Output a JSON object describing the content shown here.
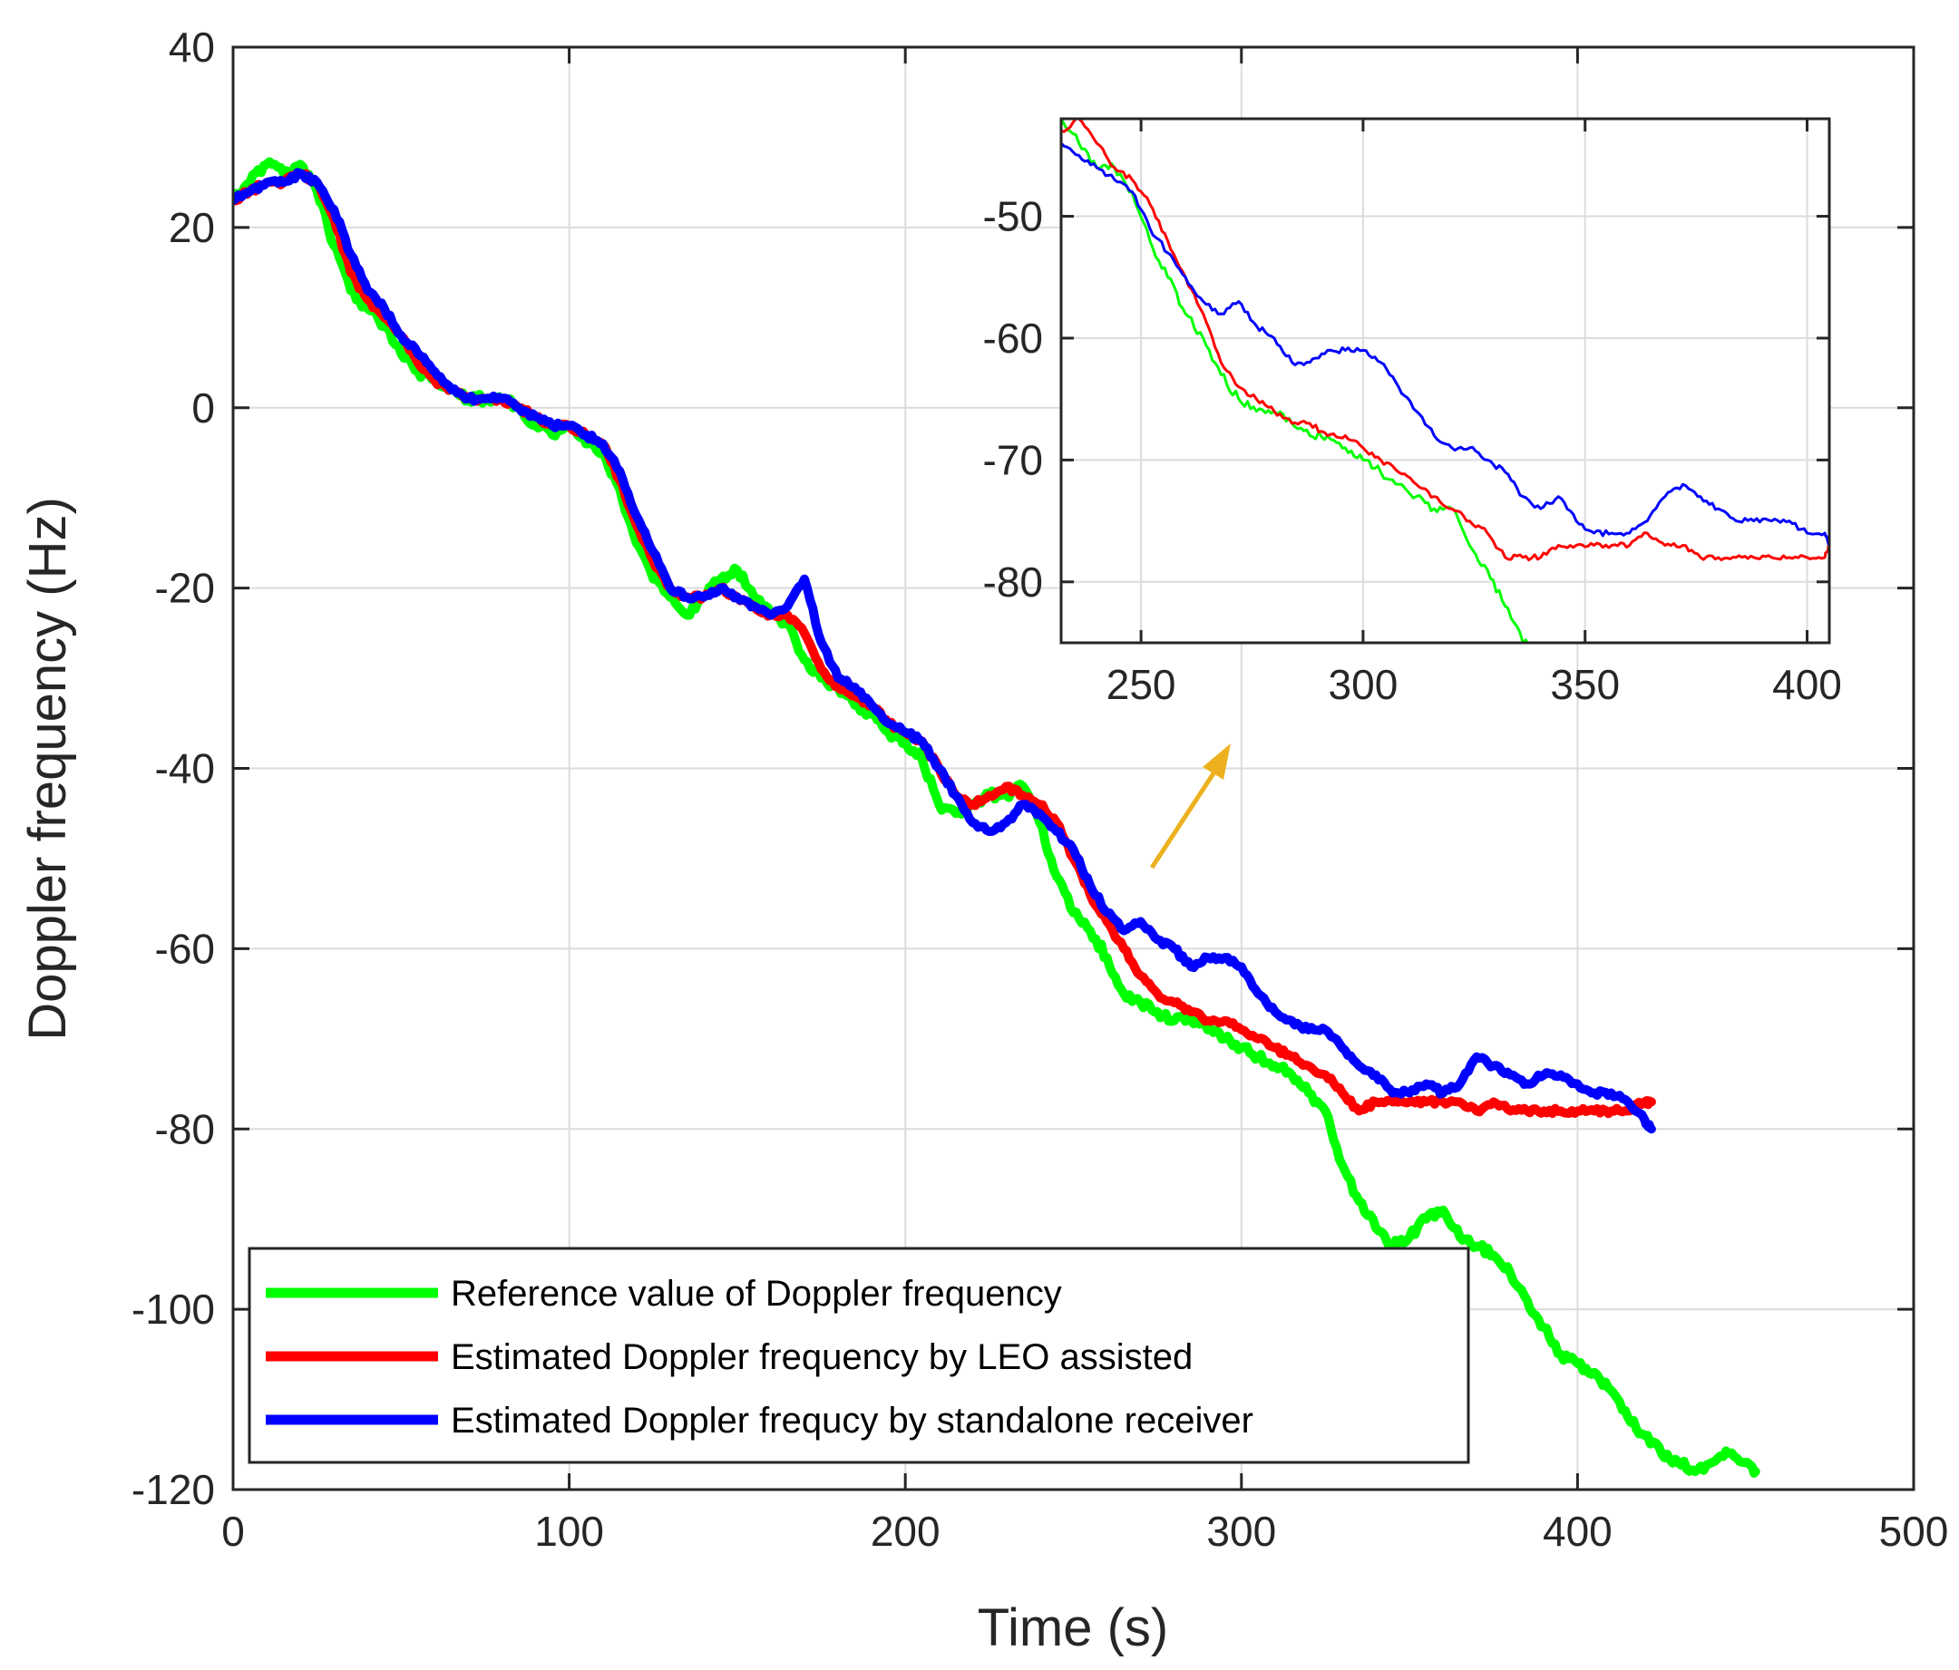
{
  "colors": {
    "reference": "#00ff00",
    "leo": "#ff0000",
    "standalone": "#0000ff",
    "arrow": "#edb120",
    "grid": "#dcdcdc",
    "axis": "#262626"
  },
  "chart_data": [
    {
      "id": "main",
      "type": "line",
      "xlabel": "Time (s)",
      "ylabel": "Doppler frequency (Hz)",
      "xlim": [
        0,
        500
      ],
      "ylim": [
        -120,
        40
      ],
      "xticks": [
        0,
        100,
        200,
        300,
        400,
        500
      ],
      "xtick_labels": [
        "0",
        "100",
        "200",
        "300",
        "400",
        "500"
      ],
      "yticks": [
        40,
        20,
        0,
        -20,
        -40,
        -60,
        -80,
        -100,
        -120
      ],
      "ytick_labels": [
        "40",
        "20",
        "0",
        "-20",
        "-40",
        "-60",
        "-80",
        "-100",
        "-120"
      ],
      "grid": true,
      "legend_position": "bottom-left",
      "series": [
        {
          "name": "Reference value of Doppler frequency",
          "color_key": "reference",
          "x": [
            0,
            5,
            10,
            15,
            20,
            25,
            30,
            35,
            40,
            45,
            50,
            55,
            60,
            65,
            70,
            75,
            80,
            85,
            90,
            95,
            100,
            105,
            110,
            115,
            120,
            125,
            130,
            135,
            140,
            145,
            150,
            155,
            160,
            165,
            170,
            175,
            180,
            185,
            190,
            195,
            200,
            205,
            210,
            215,
            220,
            225,
            230,
            235,
            240,
            245,
            250,
            255,
            260,
            265,
            270,
            275,
            280,
            285,
            290,
            295,
            300,
            305,
            310,
            315,
            320,
            325,
            330,
            335,
            340,
            345,
            350,
            355,
            360,
            365,
            370,
            375,
            380,
            385,
            390,
            395,
            400,
            405,
            410,
            415,
            420,
            425,
            430,
            435,
            440,
            445,
            450,
            453
          ],
          "y": [
            23,
            25,
            27,
            26,
            27,
            24,
            18,
            13,
            11,
            9,
            6,
            4,
            3,
            2,
            1,
            1,
            1,
            0,
            -2,
            -3,
            -2,
            -4,
            -5,
            -9,
            -15,
            -19,
            -21,
            -23,
            -21,
            -19,
            -18,
            -21,
            -23,
            -24,
            -28,
            -30,
            -31,
            -33,
            -34,
            -36,
            -37,
            -39,
            -44,
            -45,
            -44,
            -43,
            -43,
            -42,
            -46,
            -52,
            -56,
            -58,
            -61,
            -65,
            -66,
            -67,
            -68,
            -68,
            -69,
            -70,
            -71,
            -72,
            -73,
            -74,
            -76,
            -78,
            -84,
            -88,
            -91,
            -93,
            -92,
            -90,
            -89,
            -92,
            -93,
            -94,
            -96,
            -99,
            -102,
            -105,
            -106,
            -107,
            -109,
            -112,
            -114,
            -116,
            -117,
            -118,
            -117,
            -116,
            -117,
            -118
          ]
        },
        {
          "name": "Estimated Doppler frequency by LEO assisted",
          "color_key": "leo",
          "x": [
            0,
            5,
            10,
            15,
            20,
            25,
            30,
            35,
            40,
            45,
            50,
            55,
            60,
            65,
            70,
            75,
            80,
            85,
            90,
            95,
            100,
            105,
            110,
            115,
            120,
            125,
            130,
            135,
            140,
            145,
            150,
            155,
            160,
            165,
            170,
            175,
            180,
            185,
            190,
            195,
            200,
            205,
            210,
            215,
            220,
            225,
            230,
            235,
            240,
            245,
            250,
            255,
            260,
            265,
            270,
            275,
            280,
            285,
            290,
            295,
            300,
            305,
            310,
            315,
            320,
            325,
            330,
            335,
            340,
            345,
            350,
            355,
            360,
            365,
            370,
            375,
            380,
            385,
            390,
            395,
            400,
            405,
            410,
            415,
            420,
            422
          ],
          "y": [
            23,
            24,
            25,
            25,
            26,
            25,
            21,
            15,
            12,
            10,
            8,
            5,
            3,
            2,
            1,
            1,
            1,
            0,
            -1,
            -2,
            -2,
            -3,
            -4,
            -8,
            -13,
            -17,
            -20,
            -21,
            -21,
            -20,
            -21,
            -22,
            -23,
            -23,
            -25,
            -29,
            -31,
            -32,
            -33,
            -35,
            -36,
            -37,
            -40,
            -43,
            -44,
            -43,
            -42,
            -43,
            -44,
            -46,
            -50,
            -54,
            -57,
            -60,
            -63,
            -65,
            -66,
            -67,
            -68,
            -68,
            -69,
            -70,
            -71,
            -72,
            -73,
            -74,
            -76,
            -78,
            -77,
            -77,
            -77,
            -77,
            -77,
            -77,
            -78,
            -77,
            -78,
            -78,
            -78,
            -78,
            -78,
            -78,
            -78,
            -78,
            -77,
            -77
          ]
        },
        {
          "name": "Estimated Doppler frequcy by standalone receiver",
          "color_key": "standalone",
          "x": [
            0,
            5,
            10,
            15,
            20,
            25,
            30,
            35,
            40,
            45,
            50,
            55,
            60,
            65,
            70,
            75,
            80,
            85,
            90,
            95,
            100,
            105,
            110,
            115,
            120,
            125,
            130,
            135,
            140,
            145,
            150,
            155,
            160,
            165,
            170,
            175,
            180,
            185,
            190,
            195,
            200,
            205,
            210,
            215,
            220,
            225,
            230,
            235,
            240,
            245,
            250,
            255,
            260,
            265,
            270,
            275,
            280,
            285,
            290,
            295,
            300,
            305,
            310,
            315,
            320,
            325,
            330,
            335,
            340,
            345,
            350,
            355,
            360,
            365,
            370,
            375,
            380,
            385,
            390,
            395,
            400,
            405,
            410,
            415,
            420,
            422
          ],
          "y": [
            23,
            24,
            25,
            25,
            26,
            25,
            22,
            17,
            13,
            11,
            8,
            6,
            4,
            2,
            1,
            1,
            1,
            0,
            -1,
            -2,
            -2,
            -3,
            -4,
            -7,
            -12,
            -16,
            -20,
            -21,
            -21,
            -20,
            -21,
            -22,
            -23,
            -22,
            -19,
            -26,
            -30,
            -31,
            -33,
            -35,
            -36,
            -37,
            -40,
            -43,
            -46,
            -47,
            -46,
            -44,
            -45,
            -47,
            -49,
            -53,
            -56,
            -58,
            -57,
            -59,
            -60,
            -62,
            -61,
            -61,
            -62,
            -65,
            -67,
            -68,
            -69,
            -69,
            -71,
            -73,
            -74,
            -76,
            -76,
            -75,
            -76,
            -75,
            -72,
            -73,
            -74,
            -75,
            -74,
            -74,
            -75,
            -76,
            -76,
            -77,
            -79,
            -80
          ]
        }
      ]
    },
    {
      "id": "inset",
      "type": "line",
      "xlabel": "",
      "ylabel": "",
      "xlim": [
        232,
        405
      ],
      "ylim": [
        -85,
        -42
      ],
      "xticks": [
        250,
        300,
        350,
        400
      ],
      "xtick_labels": [
        "250",
        "300",
        "350",
        "400"
      ],
      "yticks": [
        -50,
        -60,
        -70,
        -80
      ],
      "ytick_labels": [
        "-50",
        "-60",
        "-70",
        "-80"
      ],
      "grid": true,
      "series": [
        {
          "name": "Reference value of Doppler frequency",
          "color_key": "reference",
          "x": [
            232,
            236,
            240,
            244,
            248,
            252,
            256,
            260,
            264,
            268,
            272,
            276,
            280,
            284,
            288,
            292,
            296,
            300,
            304,
            308,
            312,
            316,
            320,
            324,
            328,
            332,
            336,
            338
          ],
          "y": [
            -42,
            -44,
            -46,
            -46,
            -48,
            -52,
            -55,
            -58,
            -60,
            -63,
            -65,
            -66,
            -66,
            -67,
            -68,
            -68,
            -69,
            -70,
            -71,
            -72,
            -73,
            -74,
            -74,
            -77,
            -79,
            -82,
            -85,
            -85
          ]
        },
        {
          "name": "Estimated Doppler frequency by LEO assisted",
          "color_key": "leo",
          "x": [
            232,
            236,
            240,
            244,
            248,
            252,
            256,
            260,
            264,
            268,
            272,
            276,
            280,
            284,
            288,
            292,
            296,
            300,
            304,
            308,
            312,
            316,
            320,
            324,
            328,
            332,
            336,
            340,
            344,
            348,
            352,
            356,
            360,
            364,
            368,
            372,
            376,
            380,
            384,
            388,
            392,
            396,
            400,
            404,
            405
          ],
          "y": [
            -43,
            -42,
            -44,
            -46,
            -47,
            -49,
            -52,
            -55,
            -58,
            -62,
            -64,
            -65,
            -66,
            -67,
            -67,
            -68,
            -68,
            -69,
            -70,
            -71,
            -72,
            -73,
            -74,
            -75,
            -76,
            -78,
            -78,
            -78,
            -77,
            -77,
            -77,
            -77,
            -77,
            -76,
            -77,
            -77,
            -78,
            -78,
            -78,
            -78,
            -78,
            -78,
            -78,
            -78,
            -77
          ]
        },
        {
          "name": "Estimated Doppler frequcy by standalone receiver",
          "color_key": "standalone",
          "x": [
            232,
            236,
            240,
            244,
            248,
            252,
            256,
            260,
            264,
            268,
            272,
            276,
            280,
            284,
            288,
            292,
            296,
            300,
            304,
            308,
            312,
            316,
            320,
            324,
            328,
            332,
            336,
            340,
            344,
            348,
            352,
            356,
            360,
            364,
            368,
            372,
            376,
            380,
            384,
            388,
            392,
            396,
            400,
            404,
            405
          ],
          "y": [
            -44,
            -45,
            -46,
            -47,
            -48,
            -51,
            -53,
            -55,
            -57,
            -58,
            -57,
            -59,
            -60,
            -62,
            -62,
            -61,
            -61,
            -61,
            -62,
            -64,
            -66,
            -68,
            -69,
            -69,
            -70,
            -71,
            -73,
            -74,
            -73,
            -75,
            -76,
            -76,
            -76,
            -75,
            -73,
            -72,
            -73,
            -74,
            -75,
            -75,
            -75,
            -75,
            -76,
            -76,
            -77
          ]
        }
      ]
    }
  ],
  "annotation": {
    "arrow": "zoom-arrow"
  }
}
